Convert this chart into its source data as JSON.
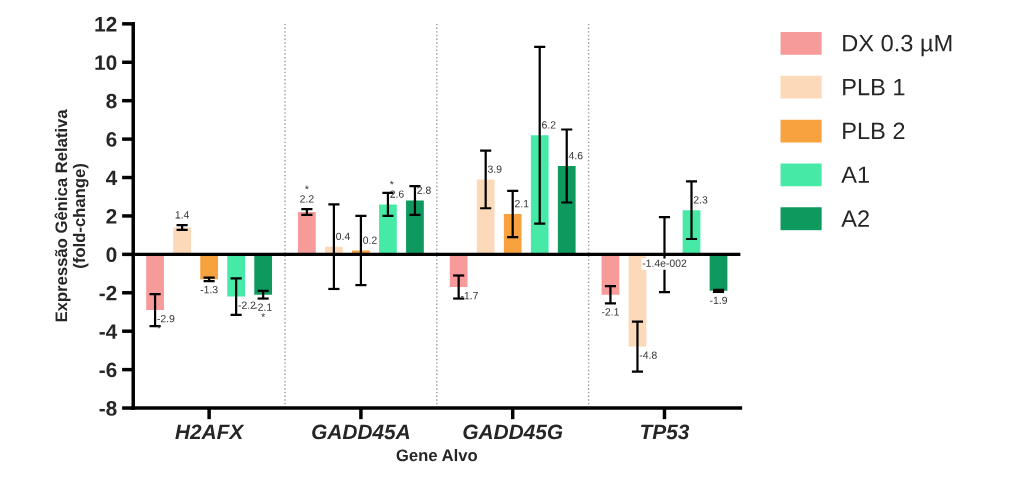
{
  "chart_data": {
    "type": "bar",
    "xlabel": "Gene Alvo",
    "ylabel": "Expressão Gênica Relativa\n(fold-change)",
    "categories": [
      "H2AFX",
      "GADD45A",
      "GADD45G",
      "TP53"
    ],
    "series": [
      {
        "name": "DX 0.3 µM",
        "color": "#f79a9a",
        "values": [
          -2.9,
          2.2,
          -1.7,
          -2.1
        ],
        "errors": [
          0.83,
          0.15,
          0.6,
          0.45
        ],
        "value_labels": [
          "-2.9\n*",
          "*\n2.2",
          "-1.7",
          "-2.1"
        ]
      },
      {
        "name": "PLB 1",
        "color": "#fcd9b8",
        "values": [
          1.4,
          0.4,
          3.9,
          -4.8
        ],
        "errors": [
          0.12,
          2.2,
          1.5,
          1.3
        ],
        "value_labels": [
          "1.4",
          "0.4",
          "3.9",
          "-4.8"
        ]
      },
      {
        "name": "PLB 2",
        "color": "#f7a23f",
        "values": [
          -1.3,
          0.2,
          2.1,
          -0.014
        ],
        "errors": [
          0.09,
          1.8,
          1.2,
          1.95
        ],
        "value_labels": [
          "-1.3",
          "0.2",
          "2.1",
          "-1.4e-002"
        ]
      },
      {
        "name": "A1",
        "color": "#46eaa6",
        "values": [
          -2.2,
          2.6,
          6.2,
          2.3
        ],
        "errors": [
          0.95,
          0.6,
          4.6,
          1.5
        ],
        "value_labels": [
          "-2.2",
          "*\n2.6",
          "6.2",
          "2.3"
        ]
      },
      {
        "name": "A2",
        "color": "#0e9a5e",
        "values": [
          -2.1,
          2.8,
          4.6,
          -1.9
        ],
        "errors": [
          0.2,
          0.75,
          1.9,
          0.05
        ],
        "value_labels": [
          "-2.1\n*",
          "2.8",
          "4.6",
          "-1.9"
        ]
      }
    ],
    "ylim": [
      -8,
      12
    ],
    "yticks": [
      -8,
      -6,
      -4,
      -2,
      0,
      2,
      4,
      6,
      8,
      10,
      12
    ],
    "grid": false,
    "legend": "right"
  }
}
